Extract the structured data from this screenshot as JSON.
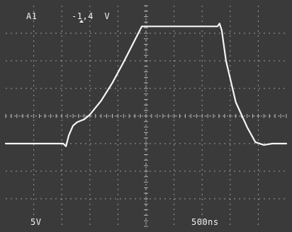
{
  "scope": {
    "channel_label": "A1",
    "trigger_level": "-1,4  V",
    "volts_per_div": "5V",
    "time_per_div": "500ns"
  },
  "colors": {
    "background": "#3a3a3a",
    "grid": "#bdbdbd",
    "trace": "#f5f5f5",
    "text": "#f2f2f2"
  },
  "chart_data": {
    "type": "line",
    "title": "",
    "xlabel": "",
    "ylabel": "",
    "x_divisions": 10,
    "y_divisions": 8,
    "grid": true,
    "series": [
      {
        "x_div": [
          0.0,
          2.05,
          2.15,
          2.25,
          2.4,
          2.55,
          2.8,
          3.0,
          3.4,
          3.8,
          4.2,
          4.6,
          4.85,
          5.0,
          6.0,
          7.55,
          7.62,
          7.7,
          7.85,
          8.2,
          8.6,
          8.9,
          9.2,
          9.5,
          10.0
        ],
        "y_div": [
          -1.0,
          -1.0,
          -1.1,
          -0.7,
          -0.35,
          -0.22,
          -0.12,
          0.05,
          0.55,
          1.2,
          1.95,
          2.75,
          3.25,
          3.25,
          3.25,
          3.25,
          3.35,
          3.1,
          2.0,
          0.5,
          -0.4,
          -0.95,
          -1.05,
          -1.0,
          -1.0
        ]
      }
    ]
  }
}
